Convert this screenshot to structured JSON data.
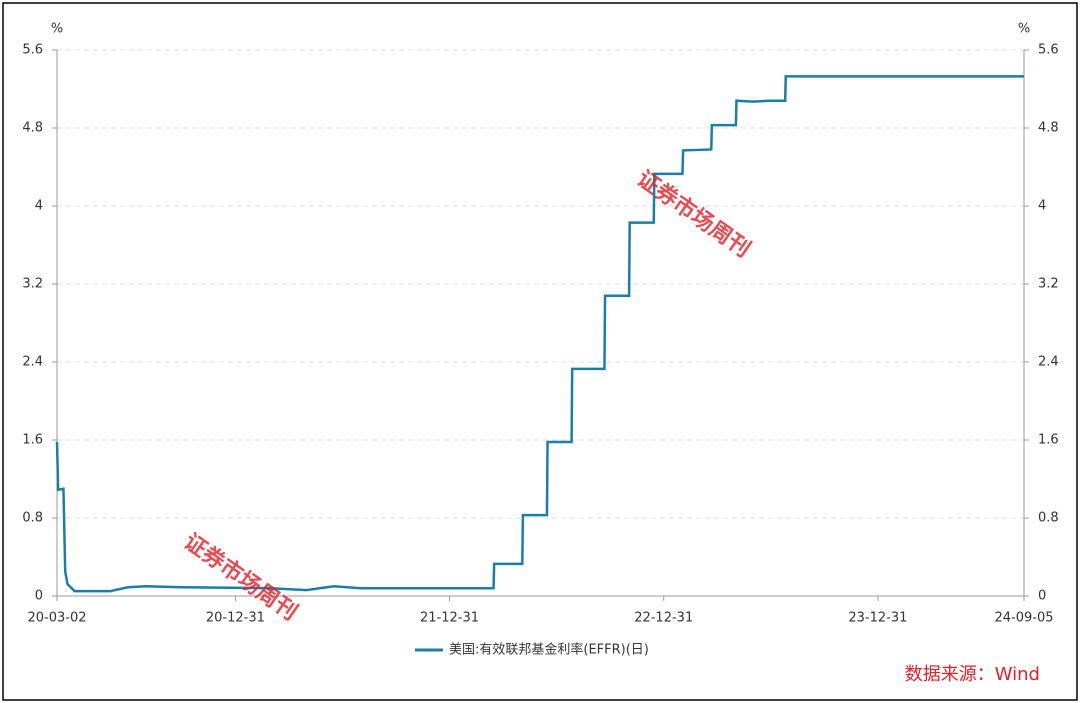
{
  "chart_data": {
    "type": "line",
    "y_unit": "%",
    "y2_unit": "%",
    "x": [
      "20-03-02",
      "20-03-04",
      "20-03-13",
      "20-03-16",
      "20-03-20",
      "20-04-01",
      "20-06-01",
      "20-07-01",
      "20-08-01",
      "20-10-01",
      "21-03-01",
      "21-05-01",
      "21-06-17",
      "21-08-01",
      "22-03-16",
      "22-03-17",
      "22-05-04",
      "22-05-05",
      "22-06-15",
      "22-06-16",
      "22-07-27",
      "22-07-28",
      "22-09-21",
      "22-09-22",
      "22-11-02",
      "22-11-03",
      "22-12-14",
      "22-12-15",
      "23-02-01",
      "23-02-02",
      "23-03-22",
      "23-03-23",
      "23-05-03",
      "23-05-04",
      "23-06-01",
      "23-07-01",
      "23-07-26",
      "23-07-27",
      "24-09-05"
    ],
    "series": [
      {
        "name": "美国:有效联邦基金利率(EFFR)(日)",
        "color": "#1a7fa6",
        "values": [
          1.58,
          1.09,
          1.1,
          0.25,
          0.12,
          0.05,
          0.05,
          0.09,
          0.1,
          0.09,
          0.08,
          0.06,
          0.1,
          0.08,
          0.08,
          0.33,
          0.33,
          0.83,
          0.83,
          1.58,
          1.58,
          2.33,
          2.33,
          3.08,
          3.08,
          3.83,
          3.83,
          4.33,
          4.33,
          4.57,
          4.58,
          4.83,
          4.83,
          5.08,
          5.07,
          5.08,
          5.08,
          5.33,
          5.33
        ]
      }
    ],
    "xlim": [
      "20-03-02",
      "24-09-05"
    ],
    "xticks": [
      "20-03-02",
      "20-12-31",
      "21-12-31",
      "22-12-31",
      "23-12-31",
      "24-09-05"
    ],
    "ylim": [
      0,
      5.6
    ],
    "yticks": [
      0,
      0.8,
      1.6,
      2.4,
      3.2,
      4,
      4.8,
      5.6
    ],
    "y2lim": [
      0,
      5.6
    ],
    "y2ticks": [
      0,
      0.8,
      1.6,
      2.4,
      3.2,
      4,
      4.8,
      5.6
    ],
    "grid": true,
    "legend": "bottom",
    "source": "数据来源：Wind",
    "watermark": "证券市场周刊"
  }
}
